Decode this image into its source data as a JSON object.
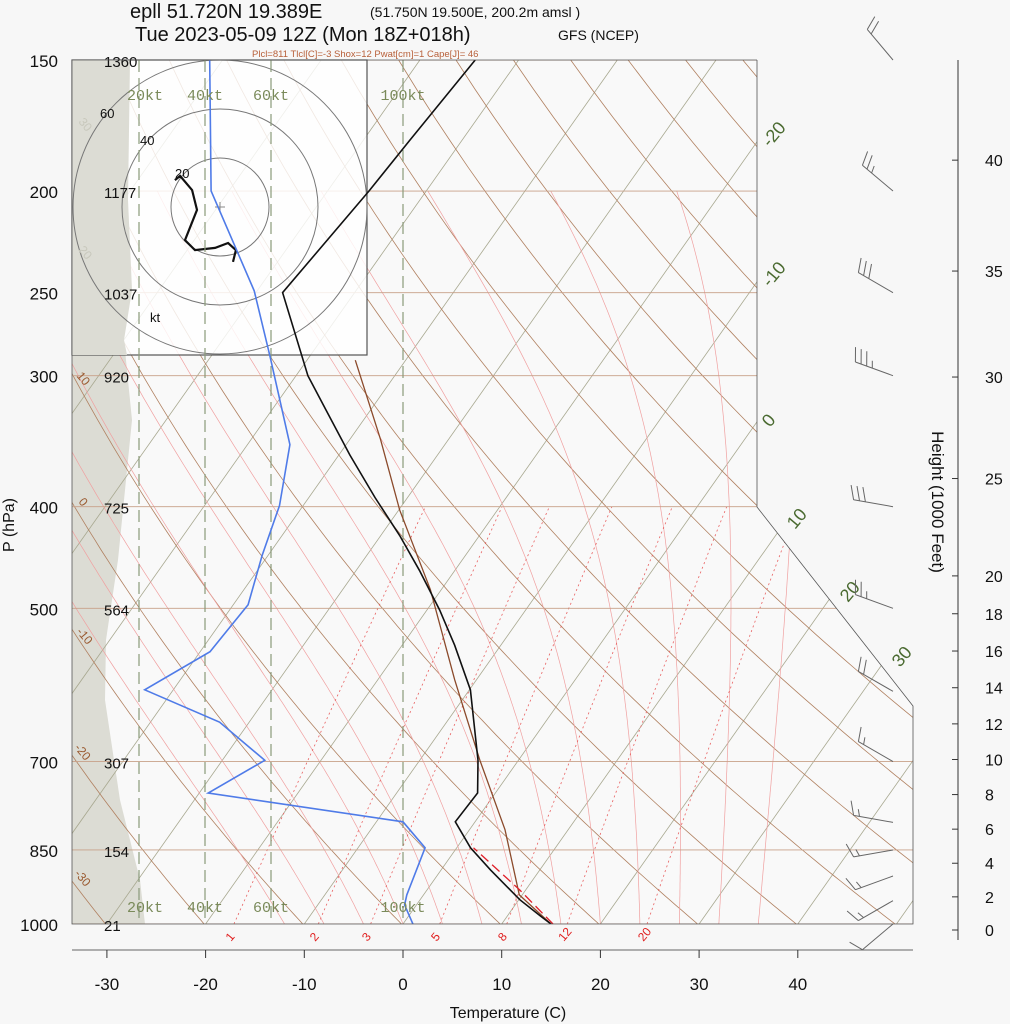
{
  "header": {
    "station": "epll 51.720N 19.389E",
    "grid": "(51.750N 19.500E, 200.2m amsl )",
    "time": "Tue 2023-05-09 12Z (Mon 18Z+018h)",
    "model": "GFS (NCEP)",
    "indices": "Plcl=811 Tlcl[C]=-3 Shox=12 Pwat[cm]=1 Cape[J]= 46"
  },
  "chart_data": {
    "type": "skew-t",
    "xlabel": "Temperature (C)",
    "ylabel": "P (hPa)",
    "y2label": "Height (1000 Feet)",
    "xlim": [
      -33,
      46
    ],
    "ylim": [
      1000,
      150
    ],
    "y_scale": "log",
    "x_ticks": [
      "-30",
      "-20",
      "-10",
      "0",
      "10",
      "20",
      "30",
      "40"
    ],
    "pressure_levels": [
      {
        "p": "150",
        "z": "1360"
      },
      {
        "p": "200",
        "z": "1177"
      },
      {
        "p": "250",
        "z": "1037"
      },
      {
        "p": "300",
        "z": "920"
      },
      {
        "p": "400",
        "z": "725"
      },
      {
        "p": "500",
        "z": "564"
      },
      {
        "p": "700",
        "z": "307"
      },
      {
        "p": "850",
        "z": "154"
      },
      {
        "p": "1000",
        "z": "21"
      }
    ],
    "height_ticks_kft": [
      "0",
      "2",
      "4",
      "6",
      "8",
      "10",
      "12",
      "14",
      "16",
      "18",
      "20",
      "25",
      "30",
      "35",
      "40"
    ],
    "isotherm_labels": [
      "-20",
      "-10",
      "0",
      "10",
      "20",
      "30"
    ],
    "dry_adiabat_labels": [
      "30",
      "20",
      "10",
      "0",
      "-10",
      "-20",
      "-30"
    ],
    "mixing_ratio_labels": [
      "1",
      "2",
      "3",
      "5",
      "8",
      "12",
      "20"
    ],
    "speed_labels": [
      "20kt",
      "40kt",
      "60kt",
      "100kt"
    ],
    "temperature": [
      [
        1000,
        15.0
      ],
      [
        982,
        13.3
      ],
      [
        948,
        10.1
      ],
      [
        888,
        5.0
      ],
      [
        846,
        1.4
      ],
      [
        799,
        -2.0
      ],
      [
        750,
        -1.8
      ],
      [
        698,
        -4.1
      ],
      [
        598,
        -9.9
      ],
      [
        542,
        -14.7
      ],
      [
        502,
        -18.7
      ],
      [
        460,
        -23.6
      ],
      [
        426,
        -28.1
      ],
      [
        392,
        -33.3
      ],
      [
        357,
        -38.9
      ],
      [
        323,
        -44.6
      ],
      [
        300,
        -48.8
      ],
      [
        250,
        -57.3
      ],
      [
        200,
        -55.8
      ],
      [
        179,
        -55.3
      ],
      [
        150,
        -54.4
      ]
    ],
    "dewpoint": [
      [
        1000,
        1.0
      ],
      [
        959,
        -1.2
      ],
      [
        938,
        -1.7
      ],
      [
        846,
        -3.2
      ],
      [
        799,
        -7.3
      ],
      [
        750,
        -29.1
      ],
      [
        698,
        -25.7
      ],
      [
        642,
        -33.0
      ],
      [
        598,
        -42.9
      ],
      [
        550,
        -39.0
      ],
      [
        496,
        -38.5
      ],
      [
        445,
        -40.6
      ],
      [
        399,
        -42.4
      ],
      [
        349,
        -45.7
      ],
      [
        287,
        -54.1
      ],
      [
        249,
        -60.3
      ],
      [
        200,
        -71.8
      ],
      [
        150,
        -81.3
      ]
    ],
    "parcel": [
      [
        1000,
        15.0
      ],
      [
        938,
        9.7
      ],
      [
        813,
        3.6
      ],
      [
        698,
        -3.9
      ],
      [
        585,
        -12.2
      ],
      [
        480,
        -21.1
      ],
      [
        403,
        -29.9
      ],
      [
        345,
        -36.9
      ],
      [
        290,
        -45.1
      ]
    ],
    "parcel_lcl": [
      [
        1000,
        15.2
      ],
      [
        928,
        9.4
      ],
      [
        846,
        1.7
      ]
    ],
    "hodograph_rings_kt": [
      "20",
      "40",
      "60"
    ],
    "hodograph_unit": "kt",
    "hodograph_uv_kt": [
      [
        -18.4,
        11.0
      ],
      [
        -16.3,
        12.7
      ],
      [
        -11.4,
        6.9
      ],
      [
        -9.4,
        -1.2
      ],
      [
        -14.3,
        -13.5
      ],
      [
        -10.2,
        -17.6
      ],
      [
        -2.0,
        -16.7
      ],
      [
        3.3,
        -14.7
      ],
      [
        6.5,
        -17.6
      ],
      [
        5.3,
        -22.4
      ]
    ],
    "wind_barbs": [
      {
        "p": 1000,
        "dir": 230,
        "kt": 10
      },
      {
        "p": 950,
        "dir": 240,
        "kt": 15
      },
      {
        "p": 900,
        "dir": 250,
        "kt": 15
      },
      {
        "p": 850,
        "dir": 260,
        "kt": 15
      },
      {
        "p": 800,
        "dir": 280,
        "kt": 15
      },
      {
        "p": 700,
        "dir": 300,
        "kt": 15
      },
      {
        "p": 600,
        "dir": 300,
        "kt": 20
      },
      {
        "p": 500,
        "dir": 290,
        "kt": 25
      },
      {
        "p": 400,
        "dir": 280,
        "kt": 30
      },
      {
        "p": 300,
        "dir": 290,
        "kt": 35
      },
      {
        "p": 250,
        "dir": 300,
        "kt": 30
      },
      {
        "p": 200,
        "dir": 310,
        "kt": 25
      },
      {
        "p": 150,
        "dir": 320,
        "kt": 20
      }
    ],
    "colors": {
      "temperature": "#111111",
      "dewpoint": "#4f7be8",
      "parcel": "#8b4a2b",
      "lcl": "#e0202a",
      "isotherm": "#a8a890",
      "dry_adiabat": "#b08060",
      "moist_adiabat": "#f0a0a0",
      "mixing_ratio": "#e86060",
      "shade": "#dcdcd4"
    }
  }
}
